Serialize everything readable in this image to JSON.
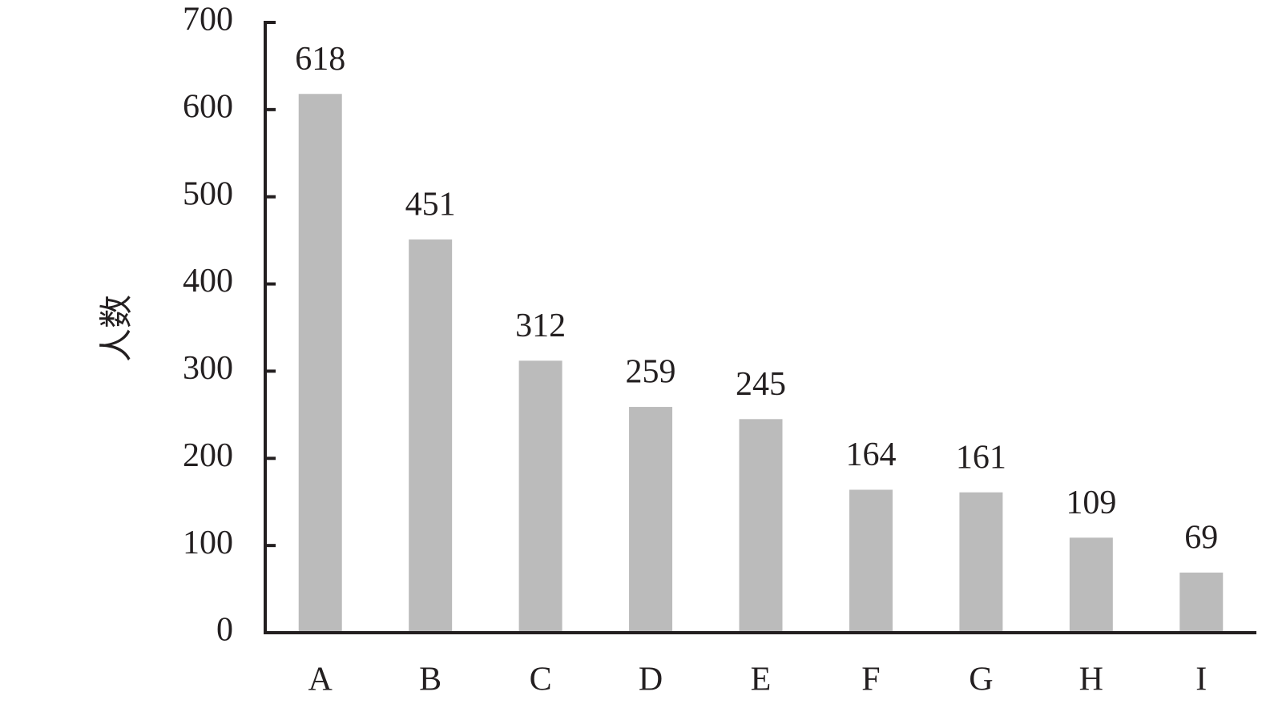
{
  "chart_data": {
    "type": "bar",
    "y_label": "人数",
    "categories": [
      "A",
      "B",
      "C",
      "D",
      "E",
      "F",
      "G",
      "H",
      "I"
    ],
    "values": [
      618,
      451,
      312,
      259,
      245,
      164,
      161,
      109,
      69
    ],
    "color": "#bbbbbb",
    "ylim": [
      0,
      700
    ],
    "yticks": [
      0,
      100,
      200,
      300,
      400,
      500,
      600,
      700
    ],
    "grid": false
  }
}
